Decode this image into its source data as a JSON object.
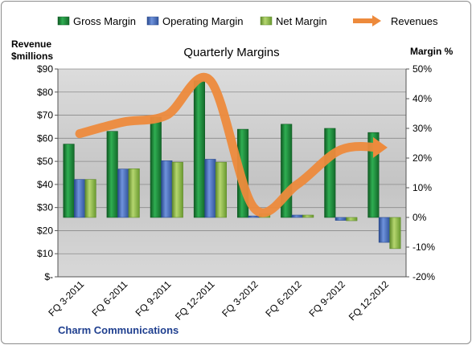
{
  "chart_data": {
    "type": "bar",
    "title": "Quarterly Margins",
    "footer": "Charm Communications",
    "categories": [
      "FQ 3-2011",
      "FQ 6-2011",
      "FQ 9-2011",
      "FQ 12-2011",
      "FQ 3-2012",
      "FQ 6-2012",
      "FQ 9-2012",
      "FQ 12-2012"
    ],
    "series": [
      {
        "name": "Gross Margin",
        "type": "bar",
        "axis": "right",
        "color": "#1e8c3a",
        "values": [
          24.7,
          29.0,
          33.8,
          46.0,
          29.7,
          31.4,
          30.0,
          28.6
        ]
      },
      {
        "name": "Operating Margin",
        "type": "bar",
        "axis": "right",
        "color": "#4a70c4",
        "values": [
          12.8,
          16.3,
          19.1,
          19.6,
          0.5,
          0.8,
          -1.0,
          -8.4
        ]
      },
      {
        "name": "Net Margin",
        "type": "bar",
        "axis": "right",
        "color": "#8fb84a",
        "values": [
          12.8,
          16.4,
          18.6,
          18.6,
          1.2,
          0.8,
          -1.1,
          -10.5
        ]
      },
      {
        "name": "Revenues",
        "type": "line",
        "axis": "left",
        "color": "#ed8a3c",
        "values": [
          62,
          67,
          70,
          85,
          30,
          40,
          55,
          56
        ]
      }
    ],
    "left_axis": {
      "title_line1": "Revenue",
      "title_line2": "$millions",
      "min": 0,
      "max": 90,
      "ticks": [
        "$-",
        "$10",
        "$20",
        "$30",
        "$40",
        "$50",
        "$60",
        "$70",
        "$80",
        "$90"
      ]
    },
    "right_axis": {
      "title": "Margin %",
      "min": -20,
      "max": 50,
      "ticks": [
        "-20%",
        "-10%",
        "0%",
        "10%",
        "20%",
        "30%",
        "40%",
        "50%"
      ]
    },
    "grid": true,
    "legend_position": "top"
  }
}
